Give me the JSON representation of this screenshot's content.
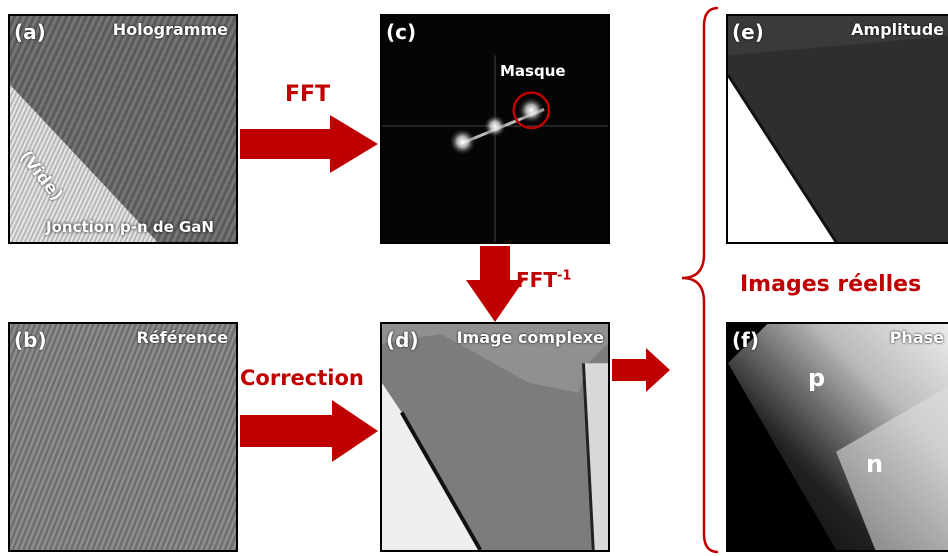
{
  "panels": {
    "a": {
      "letter": "(a)",
      "title": "Hologramme",
      "vide": "(Vide)",
      "caption": "Jonction p-n de GaN"
    },
    "b": {
      "letter": "(b)",
      "title": "Référence"
    },
    "c": {
      "letter": "(c)",
      "mask": "Masque"
    },
    "d": {
      "letter": "(d)",
      "title": "Image complexe"
    },
    "e": {
      "letter": "(e)",
      "title": "Amplitude"
    },
    "f": {
      "letter": "(f)",
      "title": "Phase",
      "p": "p",
      "n": "n"
    }
  },
  "labels": {
    "fft": "FFT",
    "ifft": "FFT",
    "ifft_sup": "-1",
    "correction": "Correction",
    "images_reelles": "Images réelles"
  },
  "colors": {
    "accent": "#c00000"
  }
}
